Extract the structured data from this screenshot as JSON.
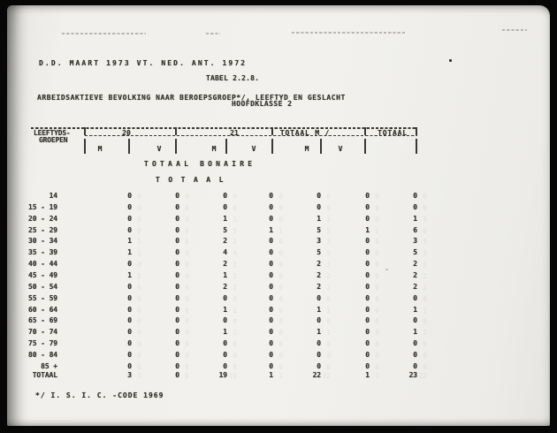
{
  "document": {
    "date_line": "D.D. MAART 1973 VT. NED. ANT. 1972",
    "table_number": "TABEL 2.2.8.",
    "title": "ARBEIDSAKTIEVE BEVOLKING NAAR BEROEPSGROEP*/, LEEFTYD EN GESLACHT",
    "subtitle": "HOOFDKLASSE 2",
    "section_title": "TOTAAL BONAIRE",
    "section_subtitle": "TOTAAL",
    "footnote": "*/ I. S. I. C. -CODE 1969"
  },
  "table": {
    "row_header_line1": "LEEFTYDS-",
    "row_header_line2": "GROEPEN",
    "col_groups": [
      {
        "label": "20"
      },
      {
        "label": "21"
      },
      {
        "label": "TOTAAL M /"
      },
      {
        "label": "TOTAAL"
      }
    ],
    "sub_headers": [
      "M",
      "V",
      "M",
      "V",
      "M",
      "V"
    ],
    "rows": [
      {
        "label": "14",
        "values": [
          "0",
          "0",
          "0",
          "0",
          "0",
          "0",
          "0"
        ]
      },
      {
        "label": "15 - 19",
        "values": [
          "0",
          "0",
          "0",
          "0",
          "0",
          "0",
          "0"
        ]
      },
      {
        "label": "20 - 24",
        "values": [
          "0",
          "0",
          "1",
          "0",
          "1",
          "0",
          "1"
        ]
      },
      {
        "label": "25 - 29",
        "values": [
          "0",
          "0",
          "5",
          "1",
          "5",
          "1",
          "6"
        ]
      },
      {
        "label": "30 - 34",
        "values": [
          "1",
          "0",
          "2",
          "0",
          "3",
          "0",
          "3"
        ]
      },
      {
        "label": "35 - 39",
        "values": [
          "1",
          "0",
          "4",
          "0",
          "5",
          "0",
          "5"
        ]
      },
      {
        "label": "40 - 44",
        "values": [
          "0",
          "0",
          "2",
          "0",
          "2",
          "0",
          "2"
        ]
      },
      {
        "label": "45 - 49",
        "values": [
          "1",
          "0",
          "1",
          "0",
          "2",
          "0",
          "2"
        ]
      },
      {
        "label": "50 - 54",
        "values": [
          "0",
          "0",
          "2",
          "0",
          "2",
          "0",
          "2"
        ]
      },
      {
        "label": "55 - 59",
        "values": [
          "0",
          "0",
          "0",
          "0",
          "0",
          "0",
          "0"
        ]
      },
      {
        "label": "60 - 64",
        "values": [
          "0",
          "0",
          "1",
          "0",
          "1",
          "0",
          "1"
        ]
      },
      {
        "label": "65 - 69",
        "values": [
          "0",
          "0",
          "0",
          "0",
          "0",
          "0",
          "0"
        ]
      },
      {
        "label": "70 - 74",
        "values": [
          "0",
          "0",
          "1",
          "0",
          "1",
          "0",
          "1"
        ]
      },
      {
        "label": "75 - 79",
        "values": [
          "0",
          "0",
          "0",
          "0",
          "0",
          "0",
          "0"
        ]
      },
      {
        "label": "80 - 84",
        "values": [
          "0",
          "0",
          "0",
          "0",
          "0",
          "0",
          "0"
        ]
      },
      {
        "label": "85 +",
        "values": [
          "0",
          "0",
          "0",
          "0",
          "0",
          "0",
          "0"
        ]
      }
    ],
    "total_row": {
      "label": "TOTAAL",
      "values": [
        "3",
        "0",
        "19",
        "1",
        "22",
        "1",
        "23"
      ]
    }
  },
  "colors": {
    "paper": "#f1f0ec",
    "ink": "#34322c",
    "scan_background": "#070707"
  }
}
